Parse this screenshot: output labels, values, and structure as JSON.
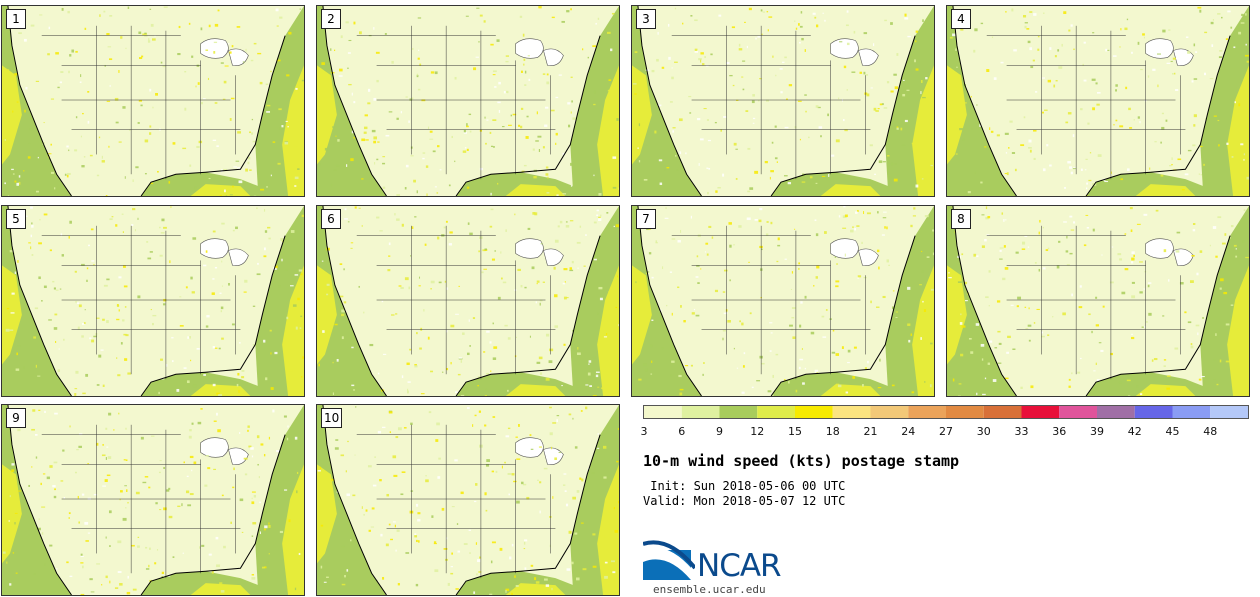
{
  "panels": [
    {
      "label": "1"
    },
    {
      "label": "2"
    },
    {
      "label": "3"
    },
    {
      "label": "4"
    },
    {
      "label": "5"
    },
    {
      "label": "6"
    },
    {
      "label": "7"
    },
    {
      "label": "8"
    },
    {
      "label": "9"
    },
    {
      "label": "10"
    }
  ],
  "colorbar": {
    "colors": [
      "#f4f8cc",
      "#dff1a0",
      "#a8cc5c",
      "#dfec4a",
      "#f7ea00",
      "#fbe480",
      "#f2c878",
      "#eba35a",
      "#e28a42",
      "#d87038",
      "#e8103a",
      "#e0549b",
      "#a06fa6",
      "#6666e8",
      "#8a9cf4",
      "#b4c8f8"
    ],
    "ticks": [
      "3",
      "6",
      "9",
      "12",
      "15",
      "18",
      "21",
      "24",
      "27",
      "30",
      "33",
      "36",
      "39",
      "42",
      "45",
      "48"
    ]
  },
  "title": "10-m wind speed (kts) postage stamp",
  "init": " Init: Sun 2018-05-06 00 UTC",
  "valid": "Valid: Mon 2018-05-07 12 UTC",
  "logo_text": "NCAR",
  "site": "ensemble.ucar.edu"
}
